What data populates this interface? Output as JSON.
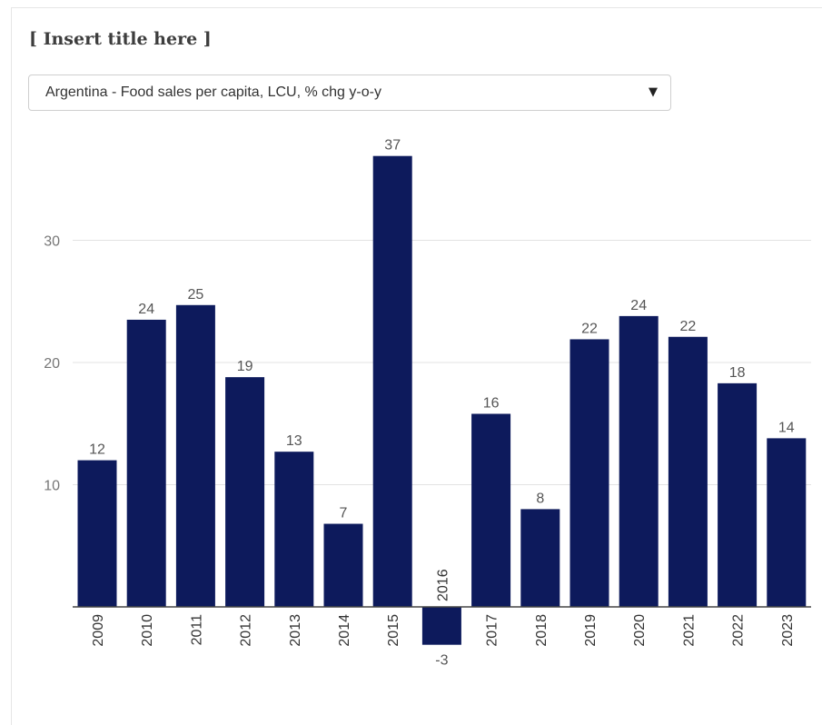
{
  "header": {
    "title": "[ Insert title here ]"
  },
  "selector": {
    "selected": "Argentina - Food sales per capita, LCU, % chg y-o-y",
    "caret_icon": "triangle-down-icon"
  },
  "colors": {
    "bar": "#0d1a5c",
    "grid": "#e3e3e3",
    "axis": "#444444"
  },
  "chart_data": {
    "type": "bar",
    "categories": [
      "2009",
      "2010",
      "2011",
      "2012",
      "2013",
      "2014",
      "2015",
      "2016",
      "2017",
      "2018",
      "2019",
      "2020",
      "2021",
      "2022",
      "2023"
    ],
    "values": [
      12,
      23.5,
      24.7,
      18.8,
      12.7,
      6.8,
      36.9,
      -3.1,
      15.8,
      8,
      21.9,
      23.8,
      22.1,
      18.3,
      13.8
    ],
    "labels": [
      "12",
      "24",
      "25",
      "19",
      "13",
      "7",
      "37",
      "-3",
      "16",
      "8",
      "22",
      "24",
      "22",
      "18",
      "14"
    ],
    "yticks": [
      10,
      20,
      30
    ],
    "ylim": [
      -4,
      40
    ],
    "grid": true,
    "legend": "none"
  }
}
